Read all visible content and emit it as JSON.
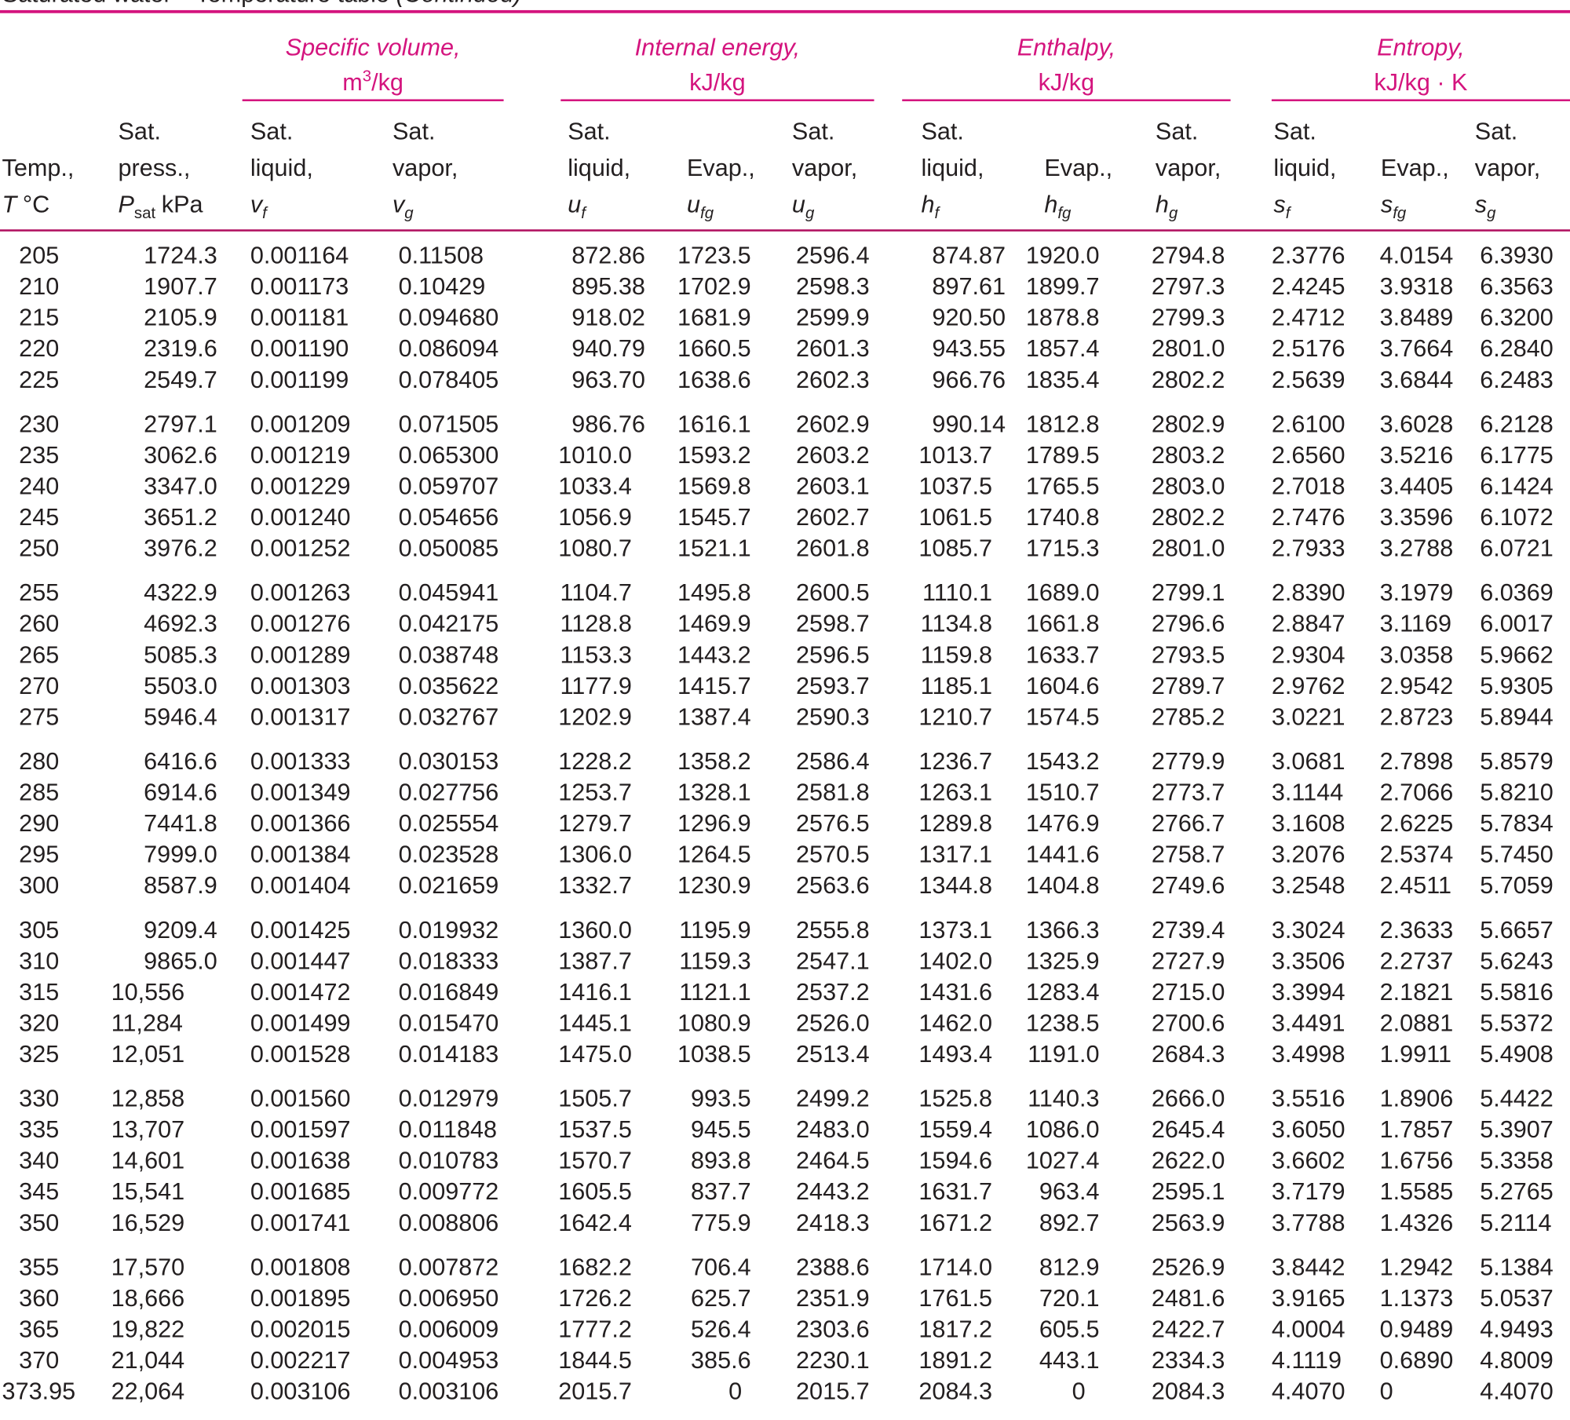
{
  "title": "Saturated water—Temperature table",
  "title_note": "(Continued)",
  "groups": [
    {
      "title": "Specific volume,",
      "unit": "m",
      "unit_sup": "3",
      "unit_rest": "/kg"
    },
    {
      "title": "Internal energy,",
      "unit": "kJ/kg"
    },
    {
      "title": "Enthalpy,",
      "unit": "kJ/kg"
    },
    {
      "title": "Entropy,",
      "unit": "kJ/kg · K"
    }
  ],
  "columns": [
    {
      "lines": [
        "Temp.,"
      ],
      "symbol": "T",
      "unit": "°C"
    },
    {
      "lines": [
        "Sat.",
        "press.,"
      ],
      "symbol": "P",
      "sub": "sat",
      "unit": "kPa"
    },
    {
      "lines": [
        "Sat.",
        "liquid,"
      ],
      "symbol": "v",
      "sub": "f"
    },
    {
      "lines": [
        "Sat.",
        "vapor,"
      ],
      "symbol": "v",
      "sub": "g"
    },
    {
      "lines": [
        "Sat.",
        "liquid,"
      ],
      "symbol": "u",
      "sub": "f"
    },
    {
      "lines": [
        "Evap.,"
      ],
      "symbol": "u",
      "sub": "fg"
    },
    {
      "lines": [
        "Sat.",
        "vapor,"
      ],
      "symbol": "u",
      "sub": "g"
    },
    {
      "lines": [
        "Sat.",
        "liquid,"
      ],
      "symbol": "h",
      "sub": "f"
    },
    {
      "lines": [
        "Evap.,"
      ],
      "symbol": "h",
      "sub": "fg"
    },
    {
      "lines": [
        "Sat.",
        "vapor,"
      ],
      "symbol": "h",
      "sub": "g"
    },
    {
      "lines": [
        "Sat.",
        "liquid,"
      ],
      "symbol": "s",
      "sub": "f"
    },
    {
      "lines": [
        "Evap.,"
      ],
      "symbol": "s",
      "sub": "fg"
    },
    {
      "lines": [
        "Sat.",
        "vapor,"
      ],
      "symbol": "s",
      "sub": "g"
    }
  ],
  "rows": [
    [
      "205",
      "1724.3",
      "0.001164",
      "0.11508",
      "872.86",
      "1723.5",
      "2596.4",
      "874.87",
      "1920.0",
      "2794.8",
      "2.3776",
      "4.0154",
      "6.3930"
    ],
    [
      "210",
      "1907.7",
      "0.001173",
      "0.10429",
      "895.38",
      "1702.9",
      "2598.3",
      "897.61",
      "1899.7",
      "2797.3",
      "2.4245",
      "3.9318",
      "6.3563"
    ],
    [
      "215",
      "2105.9",
      "0.001181",
      "0.094680",
      "918.02",
      "1681.9",
      "2599.9",
      "920.50",
      "1878.8",
      "2799.3",
      "2.4712",
      "3.8489",
      "6.3200"
    ],
    [
      "220",
      "2319.6",
      "0.001190",
      "0.086094",
      "940.79",
      "1660.5",
      "2601.3",
      "943.55",
      "1857.4",
      "2801.0",
      "2.5176",
      "3.7664",
      "6.2840"
    ],
    [
      "225",
      "2549.7",
      "0.001199",
      "0.078405",
      "963.70",
      "1638.6",
      "2602.3",
      "966.76",
      "1835.4",
      "2802.2",
      "2.5639",
      "3.6844",
      "6.2483"
    ],
    [
      "230",
      "2797.1",
      "0.001209",
      "0.071505",
      "986.76",
      "1616.1",
      "2602.9",
      "990.14",
      "1812.8",
      "2802.9",
      "2.6100",
      "3.6028",
      "6.2128"
    ],
    [
      "235",
      "3062.6",
      "0.001219",
      "0.065300",
      "1010.0",
      "1593.2",
      "2603.2",
      "1013.7",
      "1789.5",
      "2803.2",
      "2.6560",
      "3.5216",
      "6.1775"
    ],
    [
      "240",
      "3347.0",
      "0.001229",
      "0.059707",
      "1033.4",
      "1569.8",
      "2603.1",
      "1037.5",
      "1765.5",
      "2803.0",
      "2.7018",
      "3.4405",
      "6.1424"
    ],
    [
      "245",
      "3651.2",
      "0.001240",
      "0.054656",
      "1056.9",
      "1545.7",
      "2602.7",
      "1061.5",
      "1740.8",
      "2802.2",
      "2.7476",
      "3.3596",
      "6.1072"
    ],
    [
      "250",
      "3976.2",
      "0.001252",
      "0.050085",
      "1080.7",
      "1521.1",
      "2601.8",
      "1085.7",
      "1715.3",
      "2801.0",
      "2.7933",
      "3.2788",
      "6.0721"
    ],
    [
      "255",
      "4322.9",
      "0.001263",
      "0.045941",
      "1104.7",
      "1495.8",
      "2600.5",
      "1110.1",
      "1689.0",
      "2799.1",
      "2.8390",
      "3.1979",
      "6.0369"
    ],
    [
      "260",
      "4692.3",
      "0.001276",
      "0.042175",
      "1128.8",
      "1469.9",
      "2598.7",
      "1134.8",
      "1661.8",
      "2796.6",
      "2.8847",
      "3.1169",
      "6.0017"
    ],
    [
      "265",
      "5085.3",
      "0.001289",
      "0.038748",
      "1153.3",
      "1443.2",
      "2596.5",
      "1159.8",
      "1633.7",
      "2793.5",
      "2.9304",
      "3.0358",
      "5.9662"
    ],
    [
      "270",
      "5503.0",
      "0.001303",
      "0.035622",
      "1177.9",
      "1415.7",
      "2593.7",
      "1185.1",
      "1604.6",
      "2789.7",
      "2.9762",
      "2.9542",
      "5.9305"
    ],
    [
      "275",
      "5946.4",
      "0.001317",
      "0.032767",
      "1202.9",
      "1387.4",
      "2590.3",
      "1210.7",
      "1574.5",
      "2785.2",
      "3.0221",
      "2.8723",
      "5.8944"
    ],
    [
      "280",
      "6416.6",
      "0.001333",
      "0.030153",
      "1228.2",
      "1358.2",
      "2586.4",
      "1236.7",
      "1543.2",
      "2779.9",
      "3.0681",
      "2.7898",
      "5.8579"
    ],
    [
      "285",
      "6914.6",
      "0.001349",
      "0.027756",
      "1253.7",
      "1328.1",
      "2581.8",
      "1263.1",
      "1510.7",
      "2773.7",
      "3.1144",
      "2.7066",
      "5.8210"
    ],
    [
      "290",
      "7441.8",
      "0.001366",
      "0.025554",
      "1279.7",
      "1296.9",
      "2576.5",
      "1289.8",
      "1476.9",
      "2766.7",
      "3.1608",
      "2.6225",
      "5.7834"
    ],
    [
      "295",
      "7999.0",
      "0.001384",
      "0.023528",
      "1306.0",
      "1264.5",
      "2570.5",
      "1317.1",
      "1441.6",
      "2758.7",
      "3.2076",
      "2.5374",
      "5.7450"
    ],
    [
      "300",
      "8587.9",
      "0.001404",
      "0.021659",
      "1332.7",
      "1230.9",
      "2563.6",
      "1344.8",
      "1404.8",
      "2749.6",
      "3.2548",
      "2.4511",
      "5.7059"
    ],
    [
      "305",
      "9209.4",
      "0.001425",
      "0.019932",
      "1360.0",
      "1195.9",
      "2555.8",
      "1373.1",
      "1366.3",
      "2739.4",
      "3.3024",
      "2.3633",
      "5.6657"
    ],
    [
      "310",
      "9865.0",
      "0.001447",
      "0.018333",
      "1387.7",
      "1159.3",
      "2547.1",
      "1402.0",
      "1325.9",
      "2727.9",
      "3.3506",
      "2.2737",
      "5.6243"
    ],
    [
      "315",
      "10,556",
      "0.001472",
      "0.016849",
      "1416.1",
      "1121.1",
      "2537.2",
      "1431.6",
      "1283.4",
      "2715.0",
      "3.3994",
      "2.1821",
      "5.5816"
    ],
    [
      "320",
      "11,284",
      "0.001499",
      "0.015470",
      "1445.1",
      "1080.9",
      "2526.0",
      "1462.0",
      "1238.5",
      "2700.6",
      "3.4491",
      "2.0881",
      "5.5372"
    ],
    [
      "325",
      "12,051",
      "0.001528",
      "0.014183",
      "1475.0",
      "1038.5",
      "2513.4",
      "1493.4",
      "1191.0",
      "2684.3",
      "3.4998",
      "1.9911",
      "5.4908"
    ],
    [
      "330",
      "12,858",
      "0.001560",
      "0.012979",
      "1505.7",
      "993.5",
      "2499.2",
      "1525.8",
      "1140.3",
      "2666.0",
      "3.5516",
      "1.8906",
      "5.4422"
    ],
    [
      "335",
      "13,707",
      "0.001597",
      "0.011848",
      "1537.5",
      "945.5",
      "2483.0",
      "1559.4",
      "1086.0",
      "2645.4",
      "3.6050",
      "1.7857",
      "5.3907"
    ],
    [
      "340",
      "14,601",
      "0.001638",
      "0.010783",
      "1570.7",
      "893.8",
      "2464.5",
      "1594.6",
      "1027.4",
      "2622.0",
      "3.6602",
      "1.6756",
      "5.3358"
    ],
    [
      "345",
      "15,541",
      "0.001685",
      "0.009772",
      "1605.5",
      "837.7",
      "2443.2",
      "1631.7",
      "963.4",
      "2595.1",
      "3.7179",
      "1.5585",
      "5.2765"
    ],
    [
      "350",
      "16,529",
      "0.001741",
      "0.008806",
      "1642.4",
      "775.9",
      "2418.3",
      "1671.2",
      "892.7",
      "2563.9",
      "3.7788",
      "1.4326",
      "5.2114"
    ],
    [
      "355",
      "17,570",
      "0.001808",
      "0.007872",
      "1682.2",
      "706.4",
      "2388.6",
      "1714.0",
      "812.9",
      "2526.9",
      "3.8442",
      "1.2942",
      "5.1384"
    ],
    [
      "360",
      "18,666",
      "0.001895",
      "0.006950",
      "1726.2",
      "625.7",
      "2351.9",
      "1761.5",
      "720.1",
      "2481.6",
      "3.9165",
      "1.1373",
      "5.0537"
    ],
    [
      "365",
      "19,822",
      "0.002015",
      "0.006009",
      "1777.2",
      "526.4",
      "2303.6",
      "1817.2",
      "605.5",
      "2422.7",
      "4.0004",
      "0.9489",
      "4.9493"
    ],
    [
      "370",
      "21,044",
      "0.002217",
      "0.004953",
      "1844.5",
      "385.6",
      "2230.1",
      "1891.2",
      "443.1",
      "2334.3",
      "4.1119",
      "0.6890",
      "4.8009"
    ],
    [
      "373.95",
      "22,064",
      "0.003106",
      "0.003106",
      "2015.7",
      "0",
      "2015.7",
      "2084.3",
      "0",
      "2084.3",
      "4.4070",
      "0",
      "4.4070"
    ]
  ]
}
